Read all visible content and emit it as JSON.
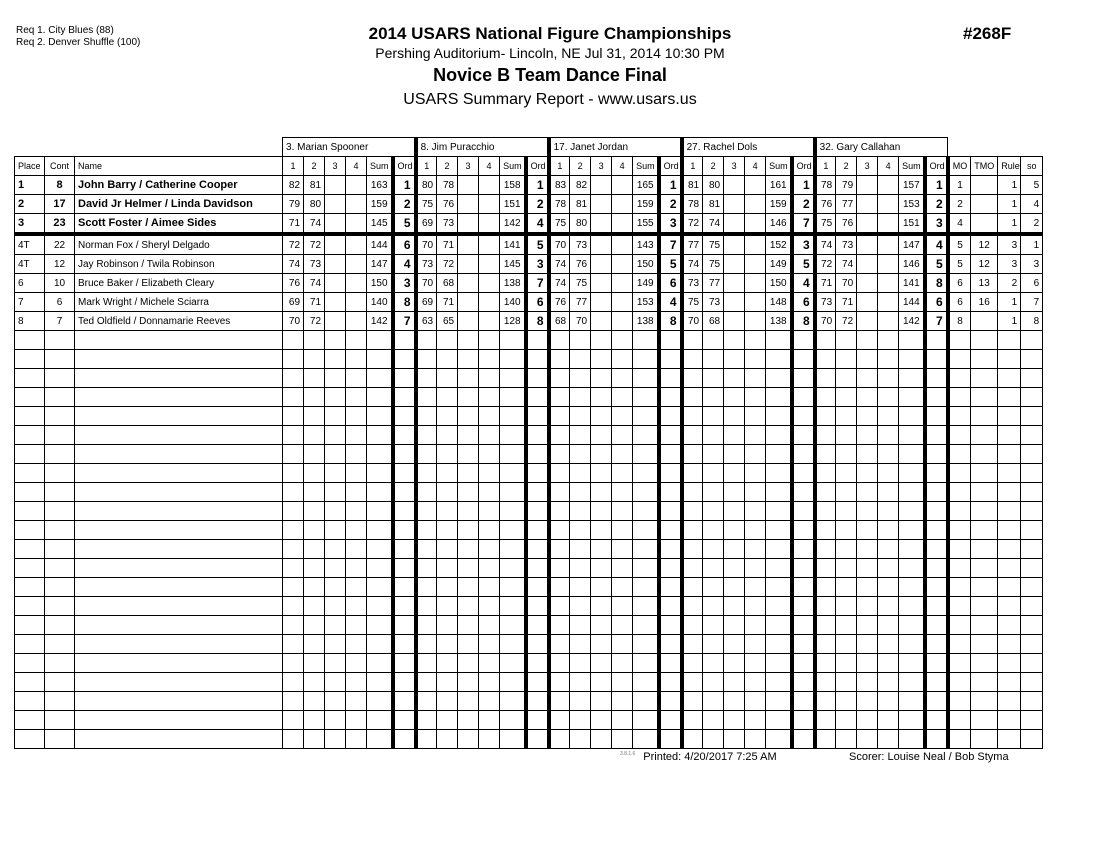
{
  "header": {
    "requests": [
      "Req  1.  City Blues (88)",
      "Req  2.  Denver Shuffle (100)"
    ],
    "title": "2014 USARS National Figure Championships",
    "subtitle": "Pershing Auditorium- Lincoln, NE  Jul 31, 2014  10:30 PM",
    "event": "Novice B Team Dance Final",
    "report": "USARS Summary Report - www.usars.us",
    "event_number": "#268F"
  },
  "columns": {
    "place": "Place",
    "cont": "Cont",
    "name": "Name",
    "marks": [
      "1",
      "2",
      "3",
      "4"
    ],
    "sum": "Sum",
    "ord": "Ord",
    "mo": "MO",
    "tmo": "TMO",
    "rule": "Rule",
    "so": "so"
  },
  "judges": [
    "3.  Marian Spooner",
    "8.  Jim Puracchio",
    "17.  Janet Jordan",
    "27.  Rachel Dols",
    "32.  Gary Callahan"
  ],
  "rows": [
    {
      "place": "1",
      "cont": "8",
      "name": "John Barry / Catherine Cooper",
      "bold": true,
      "scores": [
        [
          82,
          81,
          163,
          1
        ],
        [
          80,
          78,
          158,
          1
        ],
        [
          83,
          82,
          165,
          1
        ],
        [
          81,
          80,
          161,
          1
        ],
        [
          78,
          79,
          157,
          1
        ]
      ],
      "mo": "1",
      "tmo": "",
      "rule": "1",
      "so": "5"
    },
    {
      "place": "2",
      "cont": "17",
      "name": "David Jr Helmer / Linda Davidson",
      "bold": true,
      "scores": [
        [
          79,
          80,
          159,
          2
        ],
        [
          75,
          76,
          151,
          2
        ],
        [
          78,
          81,
          159,
          2
        ],
        [
          78,
          81,
          159,
          2
        ],
        [
          76,
          77,
          153,
          2
        ]
      ],
      "mo": "2",
      "tmo": "",
      "rule": "1",
      "so": "4"
    },
    {
      "place": "3",
      "cont": "23",
      "name": "Scott Foster / Aimee Sides",
      "bold": true,
      "scores": [
        [
          71,
          74,
          145,
          5
        ],
        [
          69,
          73,
          142,
          4
        ],
        [
          75,
          80,
          155,
          3
        ],
        [
          72,
          74,
          146,
          7
        ],
        [
          75,
          76,
          151,
          3
        ]
      ],
      "mo": "4",
      "tmo": "",
      "rule": "1",
      "so": "2"
    },
    {
      "place": "4T",
      "cont": "22",
      "name": "Norman Fox / Sheryl Delgado",
      "bold": false,
      "scores": [
        [
          72,
          72,
          144,
          6
        ],
        [
          70,
          71,
          141,
          5
        ],
        [
          70,
          73,
          143,
          7
        ],
        [
          77,
          75,
          152,
          3
        ],
        [
          74,
          73,
          147,
          4
        ]
      ],
      "mo": "5",
      "tmo": "12",
      "rule": "3",
      "so": "1"
    },
    {
      "place": "4T",
      "cont": "12",
      "name": "Jay Robinson / Twila Robinson",
      "bold": false,
      "scores": [
        [
          74,
          73,
          147,
          4
        ],
        [
          73,
          72,
          145,
          3
        ],
        [
          74,
          76,
          150,
          5
        ],
        [
          74,
          75,
          149,
          5
        ],
        [
          72,
          74,
          146,
          5
        ]
      ],
      "mo": "5",
      "tmo": "12",
      "rule": "3",
      "so": "3"
    },
    {
      "place": "6",
      "cont": "10",
      "name": "Bruce Baker / Elizabeth Cleary",
      "bold": false,
      "scores": [
        [
          76,
          74,
          150,
          3
        ],
        [
          70,
          68,
          138,
          7
        ],
        [
          74,
          75,
          149,
          6
        ],
        [
          73,
          77,
          150,
          4
        ],
        [
          71,
          70,
          141,
          8
        ]
      ],
      "mo": "6",
      "tmo": "13",
      "rule": "2",
      "so": "6"
    },
    {
      "place": "7",
      "cont": "6",
      "name": "Mark Wright / Michele Sciarra",
      "bold": false,
      "scores": [
        [
          69,
          71,
          140,
          8
        ],
        [
          69,
          71,
          140,
          6
        ],
        [
          76,
          77,
          153,
          4
        ],
        [
          75,
          73,
          148,
          6
        ],
        [
          73,
          71,
          144,
          6
        ]
      ],
      "mo": "6",
      "tmo": "16",
      "rule": "1",
      "so": "7"
    },
    {
      "place": "8",
      "cont": "7",
      "name": "Ted Oldfield / Donnamarie Reeves",
      "bold": false,
      "scores": [
        [
          70,
          72,
          142,
          7
        ],
        [
          63,
          65,
          128,
          8
        ],
        [
          68,
          70,
          138,
          8
        ],
        [
          70,
          68,
          138,
          8
        ],
        [
          70,
          72,
          142,
          7
        ]
      ],
      "mo": "8",
      "tmo": "",
      "rule": "1",
      "so": "8"
    }
  ],
  "footer": {
    "version": "3.8.1.6",
    "printed": "Printed:  4/20/2017  7:25 AM",
    "scorer": "Scorer:   Louise Neal / Bob Styma"
  }
}
